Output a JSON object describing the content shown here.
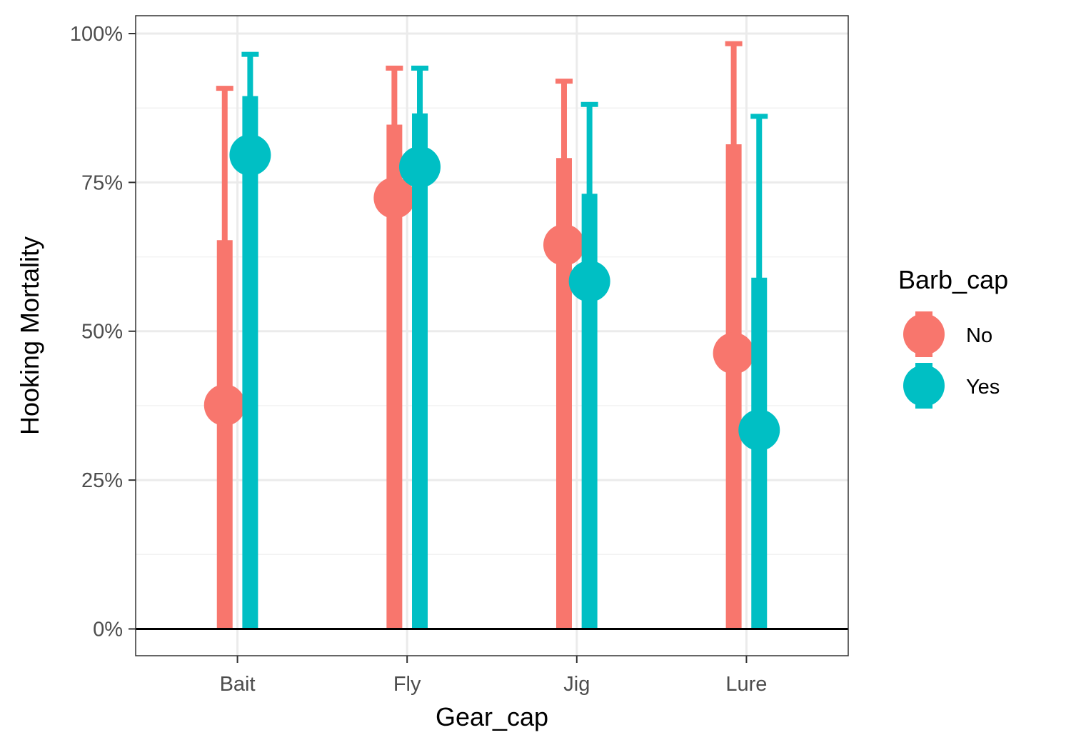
{
  "chart_data": {
    "type": "dot-errorbar",
    "xlabel": "Gear_cap",
    "ylabel": "Hooking Mortality",
    "categories": [
      "Bait",
      "Fly",
      "Jig",
      "Lure"
    ],
    "y_ticks": [
      "0%",
      "25%",
      "50%",
      "75%",
      "100%"
    ],
    "ylim": [
      -0.045,
      1.03
    ],
    "grid": true,
    "reference_line_y": 0,
    "legend": {
      "title": "Barb_cap",
      "placement": "right",
      "items": [
        {
          "label": "No",
          "color": "#F8766D"
        },
        {
          "label": "Yes",
          "color": "#00BFC4"
        }
      ]
    },
    "series": [
      {
        "name": "No",
        "color": "#F8766D",
        "values": [
          0.376,
          0.724,
          0.645,
          0.463
        ],
        "inner_interval": [
          [
            0,
            0.653
          ],
          [
            0,
            0.847
          ],
          [
            0,
            0.791
          ],
          [
            0,
            0.814
          ]
        ],
        "outer_interval": [
          [
            0,
            0.908
          ],
          [
            0,
            0.942
          ],
          [
            0,
            0.92
          ],
          [
            0,
            0.983
          ]
        ]
      },
      {
        "name": "Yes",
        "color": "#00BFC4",
        "values": [
          0.796,
          0.776,
          0.584,
          0.334
        ],
        "inner_interval": [
          [
            0,
            0.895
          ],
          [
            0,
            0.866
          ],
          [
            0,
            0.731
          ],
          [
            0,
            0.59
          ]
        ],
        "outer_interval": [
          [
            0,
            0.965
          ],
          [
            0,
            0.942
          ],
          [
            0,
            0.881
          ],
          [
            0,
            0.861
          ]
        ]
      }
    ]
  }
}
